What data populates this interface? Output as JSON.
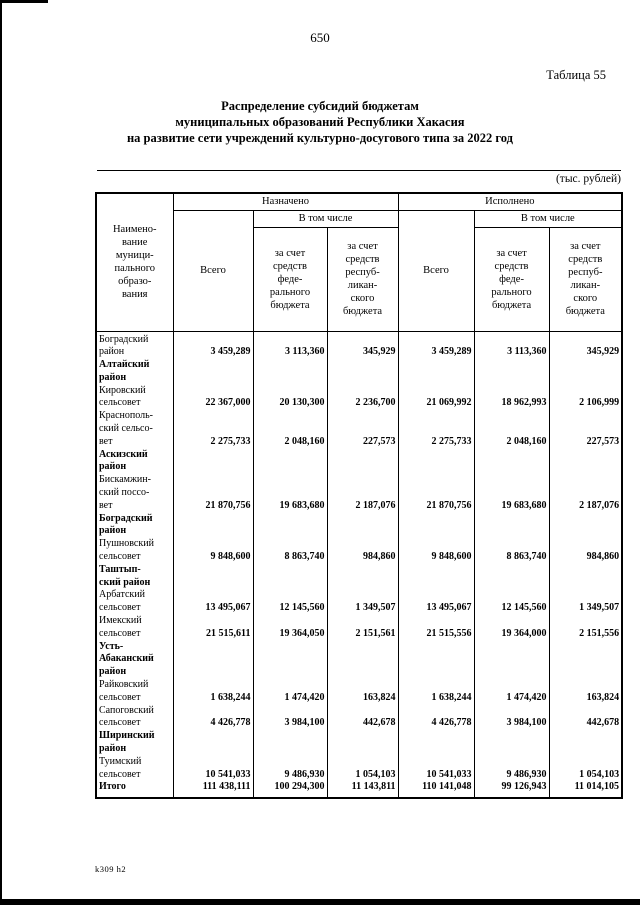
{
  "page": {
    "number": "650",
    "table_label": "Таблица 55",
    "title_lines": [
      "Распределение субсидий бюджетам",
      "муниципальных образований Республики Хакасия",
      "на развитие сети учреждений культурно-досугового типа за 2022 год"
    ],
    "units_note": "(тыс. рублей)",
    "footer_code": "k309 h2"
  },
  "table": {
    "header": {
      "name_column_lines": [
        "Наимено-",
        "вание",
        "муници-",
        "пального",
        "образо-",
        "вания"
      ],
      "assigned": "Назначено",
      "executed": "Исполнено",
      "total": "Всего",
      "including": "В том числе",
      "federal_lines": [
        "за счет",
        "средств",
        "феде-",
        "рального",
        "бюджета"
      ],
      "republican_lines": [
        "за счет",
        "средств",
        "респуб-",
        "ликан-",
        "ского",
        "бюджета"
      ]
    },
    "rows": [
      {
        "type": "data",
        "name_lines": [
          "Боградский",
          "район"
        ],
        "values": [
          "3 459,289",
          "3 113,360",
          "345,929",
          "3 459,289",
          "3 113,360",
          "345,929"
        ]
      },
      {
        "type": "group",
        "name_lines": [
          "Алтайский",
          "район"
        ],
        "values": [
          "",
          "",
          "",
          "",
          "",
          ""
        ]
      },
      {
        "type": "data",
        "name_lines": [
          "Кировский",
          "сельсовет"
        ],
        "values": [
          "22 367,000",
          "20 130,300",
          "2 236,700",
          "21 069,992",
          "18 962,993",
          "2 106,999"
        ]
      },
      {
        "type": "data",
        "name_lines": [
          "Краснополь-",
          "ский  сельсо-",
          "вет"
        ],
        "values": [
          "2 275,733",
          "2 048,160",
          "227,573",
          "2 275,733",
          "2 048,160",
          "227,573"
        ]
      },
      {
        "type": "group",
        "name_lines": [
          "Аскизский",
          "район"
        ],
        "values": [
          "",
          "",
          "",
          "",
          "",
          ""
        ]
      },
      {
        "type": "data",
        "name_lines": [
          "Бискамжин-",
          "ский  поссо-",
          "вет"
        ],
        "values": [
          "21 870,756",
          "19 683,680",
          "2 187,076",
          "21 870,756",
          "19 683,680",
          "2 187,076"
        ]
      },
      {
        "type": "group",
        "name_lines": [
          "Боградский",
          "район"
        ],
        "values": [
          "",
          "",
          "",
          "",
          "",
          ""
        ]
      },
      {
        "type": "data",
        "name_lines": [
          "Пушновский",
          "сельсовет"
        ],
        "values": [
          "9 848,600",
          "8 863,740",
          "984,860",
          "9 848,600",
          "8 863,740",
          "984,860"
        ]
      },
      {
        "type": "group",
        "name_lines": [
          "Таштып-",
          "ский район"
        ],
        "values": [
          "",
          "",
          "",
          "",
          "",
          ""
        ]
      },
      {
        "type": "data",
        "name_lines": [
          "Арбатский",
          "сельсовет"
        ],
        "values": [
          "13 495,067",
          "12 145,560",
          "1 349,507",
          "13 495,067",
          "12 145,560",
          "1 349,507"
        ]
      },
      {
        "type": "data",
        "name_lines": [
          "Имекский",
          "сельсовет"
        ],
        "values": [
          "21 515,611",
          "19 364,050",
          "2 151,561",
          "21 515,556",
          "19 364,000",
          "2 151,556"
        ]
      },
      {
        "type": "group",
        "name_lines": [
          "Усть-",
          "Абаканский",
          "район"
        ],
        "values": [
          "",
          "",
          "",
          "",
          "",
          ""
        ]
      },
      {
        "type": "data",
        "name_lines": [
          "Райковский",
          "сельсовет"
        ],
        "values": [
          "1 638,244",
          "1 474,420",
          "163,824",
          "1 638,244",
          "1 474,420",
          "163,824"
        ]
      },
      {
        "type": "data",
        "name_lines": [
          "Сапоговский",
          "сельсовет"
        ],
        "values": [
          "4 426,778",
          "3 984,100",
          "442,678",
          "4 426,778",
          "3 984,100",
          "442,678"
        ]
      },
      {
        "type": "group",
        "name_lines": [
          "Ширинский",
          "район"
        ],
        "values": [
          "",
          "",
          "",
          "",
          "",
          ""
        ]
      },
      {
        "type": "data",
        "name_lines": [
          "Туимский",
          "сельсовет"
        ],
        "values": [
          "10 541,033",
          "9 486,930",
          "1 054,103",
          "10 541,033",
          "9 486,930",
          "1 054,103"
        ]
      },
      {
        "type": "total",
        "name_lines": [
          "Итого"
        ],
        "values": [
          "111 438,111",
          "100 294,300",
          "11 143,811",
          "110 141,048",
          "99 126,943",
          "11 014,105"
        ]
      }
    ]
  }
}
